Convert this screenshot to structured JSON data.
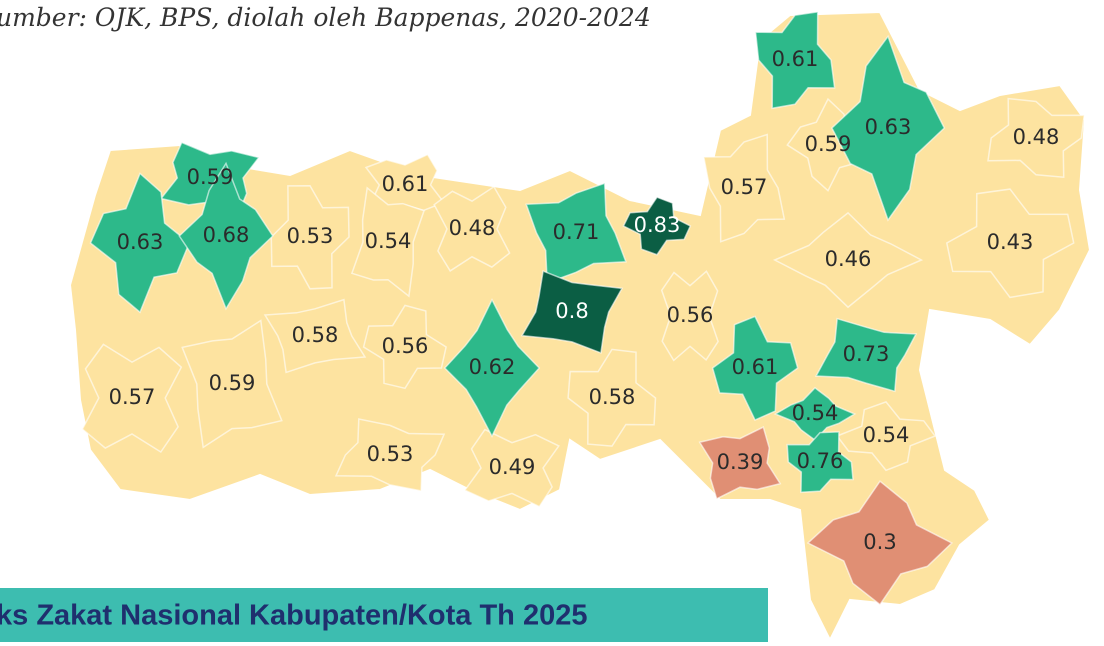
{
  "source": "umber: OJK, BPS, diolah oleh Bappenas, 2020-2024",
  "banner": "ks Zakat Nasional Kabupaten/Kota Th 2025",
  "base_color": "#fde3a0",
  "regions": [
    {
      "value": 0.61,
      "color": "#2db98a"
    },
    {
      "value": 0.59,
      "color": "#fde3a0"
    },
    {
      "value": 0.63,
      "color": "#2db98a"
    },
    {
      "value": 0.48,
      "color": "#fde3a0"
    },
    {
      "value": 0.59,
      "color": "#2db98a"
    },
    {
      "value": 0.61,
      "color": "#fde3a0"
    },
    {
      "value": 0.57,
      "color": "#fde3a0"
    },
    {
      "value": 0.63,
      "color": "#2db98a"
    },
    {
      "value": 0.68,
      "color": "#2db98a"
    },
    {
      "value": 0.53,
      "color": "#fde3a0"
    },
    {
      "value": 0.54,
      "color": "#fde3a0"
    },
    {
      "value": 0.48,
      "color": "#fde3a0"
    },
    {
      "value": 0.71,
      "color": "#2db98a"
    },
    {
      "value": 0.83,
      "color": "#0b5e44"
    },
    {
      "value": 0.46,
      "color": "#fde3a0"
    },
    {
      "value": 0.43,
      "color": "#fde3a0"
    },
    {
      "value": 0.8,
      "color": "#0b5e44"
    },
    {
      "value": 0.56,
      "color": "#fde3a0"
    },
    {
      "value": 0.58,
      "color": "#fde3a0"
    },
    {
      "value": 0.56,
      "color": "#fde3a0"
    },
    {
      "value": 0.62,
      "color": "#2db98a"
    },
    {
      "value": 0.61,
      "color": "#2db98a"
    },
    {
      "value": 0.73,
      "color": "#2db98a"
    },
    {
      "value": 0.57,
      "color": "#fde3a0"
    },
    {
      "value": 0.59,
      "color": "#fde3a0"
    },
    {
      "value": 0.58,
      "color": "#fde3a0"
    },
    {
      "value": 0.54,
      "color": "#2db98a"
    },
    {
      "value": 0.54,
      "color": "#fde3a0"
    },
    {
      "value": 0.53,
      "color": "#fde3a0"
    },
    {
      "value": 0.49,
      "color": "#fde3a0"
    },
    {
      "value": 0.39,
      "color": "#e08f74"
    },
    {
      "value": 0.76,
      "color": "#2db98a"
    },
    {
      "value": 0.3,
      "color": "#e08f74"
    }
  ]
}
